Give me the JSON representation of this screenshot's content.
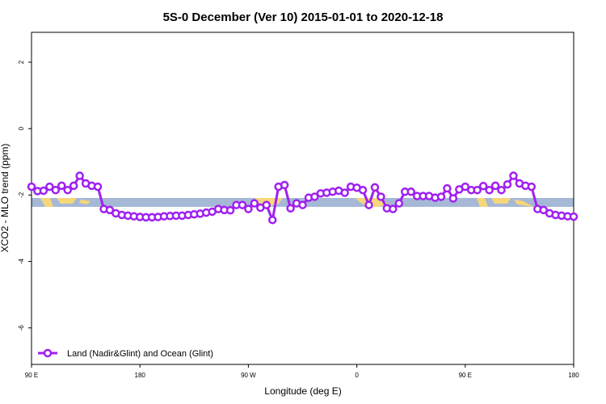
{
  "chart_data": {
    "type": "line",
    "title": "5S-0 December (Ver 10)   2015-01-01 to 2020-12-18",
    "x_label": "Longitude (deg E)",
    "y_label": "XCO2 - MLO trend (ppm)",
    "xlim": [
      90,
      540
    ],
    "ylim": [
      -7.1,
      2.9
    ],
    "xticks": [
      {
        "value": 90,
        "label": "90 E"
      },
      180,
      {
        "value": 270,
        "label": "90 W"
      },
      {
        "value": 360,
        "label": "0"
      },
      {
        "value": 450,
        "label": "90 E"
      },
      {
        "value": 540,
        "label": "180"
      }
    ],
    "yticks": [
      2,
      0,
      -2,
      -4,
      -6
    ],
    "legend": "bottom-left",
    "x": [
      90,
      95,
      100,
      105,
      110,
      115,
      120,
      125,
      130,
      135,
      140,
      145,
      150,
      155,
      160,
      165,
      170,
      175,
      180,
      185,
      190,
      195,
      200,
      205,
      210,
      215,
      220,
      225,
      230,
      235,
      240,
      245,
      250,
      255,
      260,
      265,
      270,
      275,
      280,
      285,
      290,
      295,
      300,
      305,
      310,
      315,
      320,
      325,
      330,
      335,
      340,
      345,
      350,
      355,
      360,
      365,
      370,
      375,
      380,
      385,
      390,
      395,
      400,
      405,
      410,
      415,
      420,
      425,
      430,
      435,
      440,
      445,
      450,
      455,
      460,
      465,
      470,
      475,
      480,
      485,
      490,
      495,
      500,
      505,
      510,
      515,
      520,
      525,
      530,
      535,
      540
    ],
    "series": [
      {
        "name": "Land (Nadir&Glint) and Ocean (Glint)",
        "color": "#a020f0",
        "values": [
          -1.75,
          -1.88,
          -1.87,
          -1.75,
          -1.85,
          -1.72,
          -1.85,
          -1.72,
          -1.42,
          -1.65,
          -1.72,
          -1.75,
          -2.42,
          -2.45,
          -2.55,
          -2.6,
          -2.62,
          -2.64,
          -2.66,
          -2.67,
          -2.67,
          -2.66,
          -2.64,
          -2.63,
          -2.62,
          -2.62,
          -2.6,
          -2.58,
          -2.56,
          -2.53,
          -2.5,
          -2.42,
          -2.45,
          -2.46,
          -2.3,
          -2.3,
          -2.42,
          -2.25,
          -2.38,
          -2.3,
          -2.75,
          -1.75,
          -1.7,
          -2.4,
          -2.25,
          -2.3,
          -2.08,
          -2.05,
          -1.95,
          -1.93,
          -1.9,
          -1.87,
          -1.93,
          -1.75,
          -1.78,
          -1.85,
          -2.3,
          -1.77,
          -2.05,
          -2.4,
          -2.42,
          -2.25,
          -1.9,
          -1.9,
          -2.03,
          -2.03,
          -2.03,
          -2.08,
          -2.05,
          -1.8,
          -2.1,
          -1.83,
          -1.75,
          -1.85,
          -1.85,
          -1.73,
          -1.85,
          -1.72,
          -1.85,
          -1.68,
          -1.42,
          -1.65,
          -1.72,
          -1.75,
          -2.42,
          -2.45,
          -2.55,
          -2.6,
          -2.62,
          -2.64,
          -2.65
        ]
      }
    ]
  }
}
